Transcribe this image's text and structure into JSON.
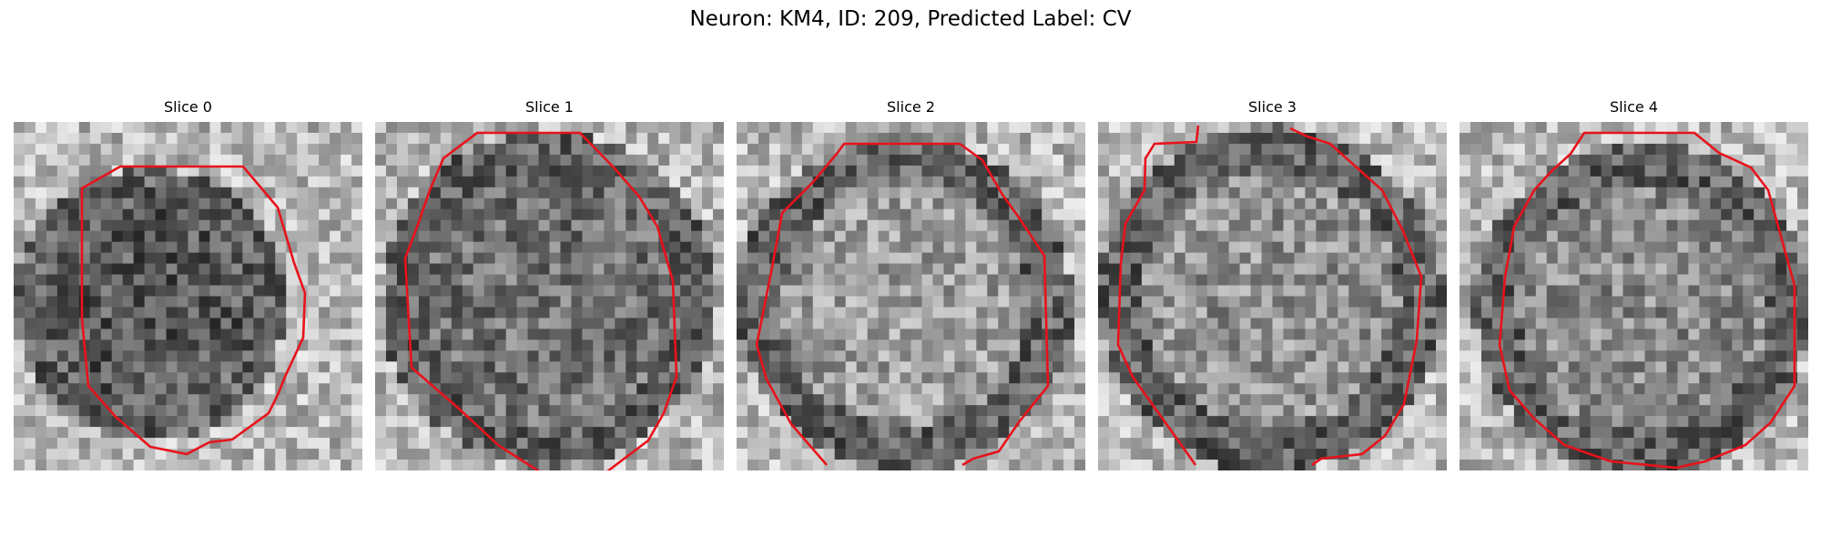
{
  "figure": {
    "title": "Neuron: KM4, ID: 209, Predicted Label: CV",
    "contour_color": "#e8121b"
  },
  "slices": [
    {
      "title": "Slice 0"
    },
    {
      "title": "Slice 1"
    },
    {
      "title": "Slice 2"
    },
    {
      "title": "Slice 3"
    },
    {
      "title": "Slice 4"
    }
  ]
}
